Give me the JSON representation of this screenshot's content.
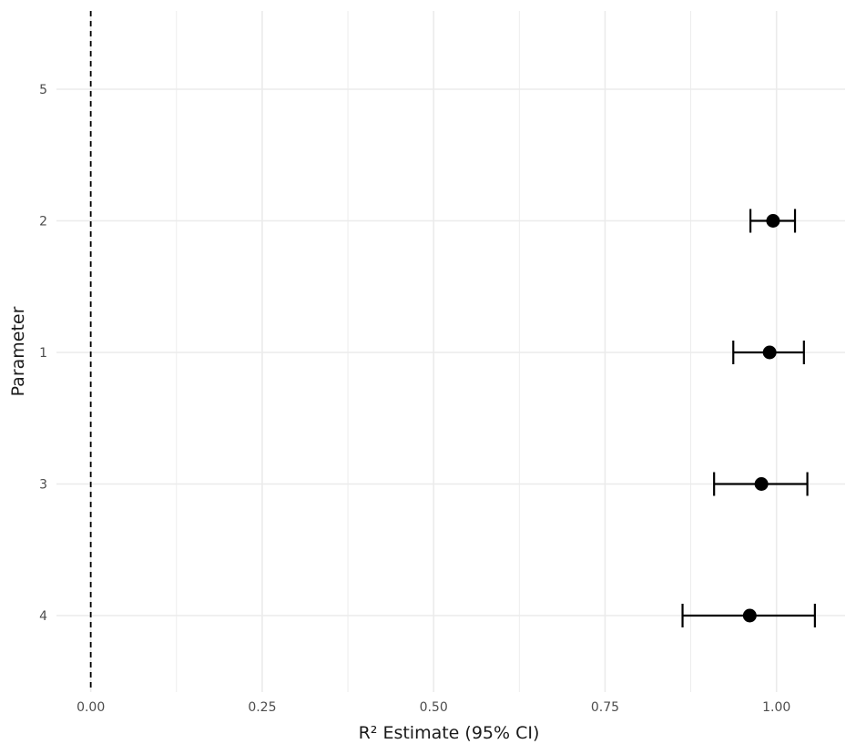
{
  "chart_data": {
    "type": "scatter",
    "subtype": "forest-plot",
    "title": "",
    "xlabel": "R² Estimate (95% CI)",
    "ylabel": "Parameter",
    "xlim": [
      -0.05,
      1.1
    ],
    "x_ticks": [
      0.0,
      0.25,
      0.5,
      0.75,
      1.0
    ],
    "x_tick_labels": [
      "0.00",
      "0.25",
      "0.50",
      "0.75",
      "1.00"
    ],
    "categories": [
      "5",
      "2",
      "1",
      "3",
      "4"
    ],
    "reference_line": {
      "x": 0,
      "style": "dashed"
    },
    "grid": true,
    "legend": "none",
    "points": [
      {
        "parameter": "5",
        "estimate": null,
        "ci_low": null,
        "ci_high": null
      },
      {
        "parameter": "2",
        "estimate": 0.995,
        "ci_low": 0.962,
        "ci_high": 1.027
      },
      {
        "parameter": "1",
        "estimate": 0.99,
        "ci_low": 0.937,
        "ci_high": 1.04
      },
      {
        "parameter": "3",
        "estimate": 0.978,
        "ci_low": 0.909,
        "ci_high": 1.045
      },
      {
        "parameter": "4",
        "estimate": 0.961,
        "ci_low": 0.863,
        "ci_high": 1.056
      }
    ],
    "colors": {
      "marks": "#000000",
      "grid": "#ebebeb",
      "text": "#4d4d4d"
    }
  }
}
